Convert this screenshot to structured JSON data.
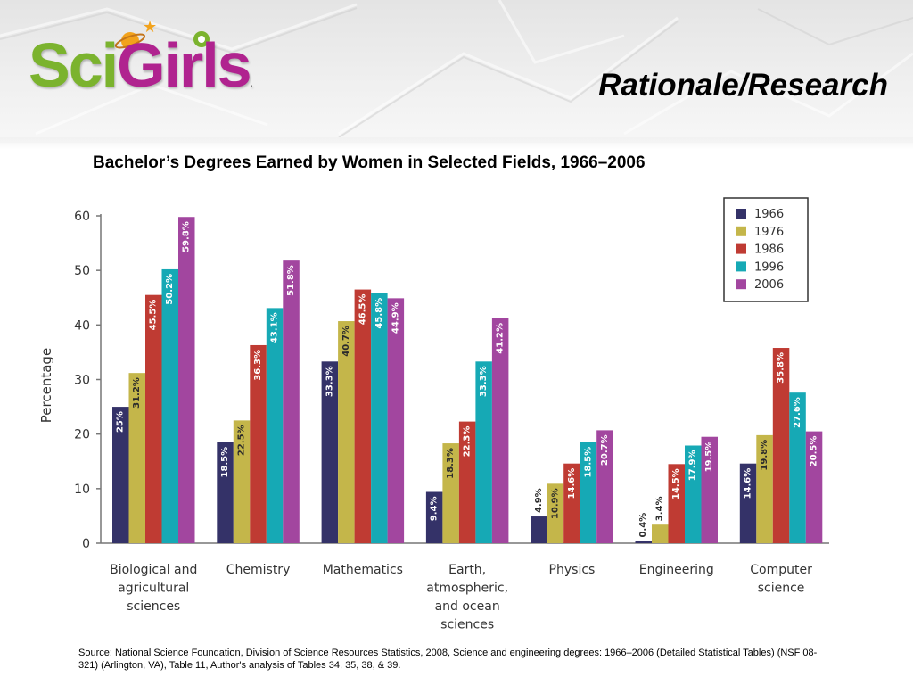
{
  "header": {
    "logo_part1": "Sci",
    "logo_part2": "Girls",
    "logo_mark": ".",
    "slide_title": "Rationale/Research"
  },
  "chart_title": "Bachelor’s Degrees Earned by Women in Selected Fields, 1966–2006",
  "source_note": "Source: National Science Foundation, Division of Science Resources Statistics, 2008, Science and engineering degrees: 1966–2006 (Detailed Statistical Tables) (NSF 08-321) (Arlington, VA), Table 11, Author's analysis of Tables 34, 35, 38, & 39.",
  "colors": {
    "logo_sci": "#7bb32e",
    "logo_girls": "#b0238f",
    "series": [
      "#343268",
      "#c4b64a",
      "#bf3b33",
      "#16a9b5",
      "#a2469f"
    ],
    "axis_text": "#333333",
    "bar_label_light": "#ffffff",
    "bar_label_dark": "#2b2b2b"
  },
  "chart_data": {
    "type": "bar",
    "ylabel": "Percentage",
    "xlabel": "",
    "ylim": [
      0,
      60
    ],
    "yticks": [
      "0",
      "10",
      "20",
      "30",
      "40",
      "50",
      "60"
    ],
    "grid": false,
    "legend_position": "top-right",
    "categories": [
      [
        "Biological and",
        "agricultural",
        "sciences"
      ],
      [
        "Chemistry"
      ],
      [
        "Mathematics"
      ],
      [
        "Earth,",
        "atmospheric,",
        "and ocean",
        "sciences"
      ],
      [
        "Physics"
      ],
      [
        "Engineering"
      ],
      [
        "Computer",
        "science"
      ]
    ],
    "series": [
      {
        "name": "1966",
        "values": [
          25,
          18.5,
          33.3,
          9.4,
          4.9,
          0.4,
          14.6
        ],
        "labels": [
          "25%",
          "18.5%",
          "33.3%",
          "9.4%",
          "4.9%",
          "0.4%",
          "14.6%"
        ]
      },
      {
        "name": "1976",
        "values": [
          31.2,
          22.5,
          40.7,
          18.3,
          10.9,
          3.4,
          19.8
        ],
        "labels": [
          "31.2%",
          "22.5%",
          "40.7%",
          "18.3%",
          "10.9%",
          "3.4%",
          "19.8%"
        ]
      },
      {
        "name": "1986",
        "values": [
          45.5,
          36.3,
          46.5,
          22.3,
          14.6,
          14.5,
          35.8
        ],
        "labels": [
          "45.5%",
          "36.3%",
          "46.5%",
          "22.3%",
          "14.6%",
          "14.5%",
          "35.8%"
        ]
      },
      {
        "name": "1996",
        "values": [
          50.2,
          43.1,
          45.8,
          33.3,
          18.5,
          17.9,
          27.6
        ],
        "labels": [
          "50.2%",
          "43.1%",
          "45.8%",
          "33.3%",
          "18.5%",
          "17.9%",
          "27.6%"
        ]
      },
      {
        "name": "2006",
        "values": [
          59.8,
          51.8,
          44.9,
          41.2,
          20.7,
          19.5,
          20.5
        ],
        "labels": [
          "59.8%",
          "51.8%",
          "44.9%",
          "41.2%",
          "20.7%",
          "19.5%",
          "20.5%"
        ]
      }
    ]
  }
}
